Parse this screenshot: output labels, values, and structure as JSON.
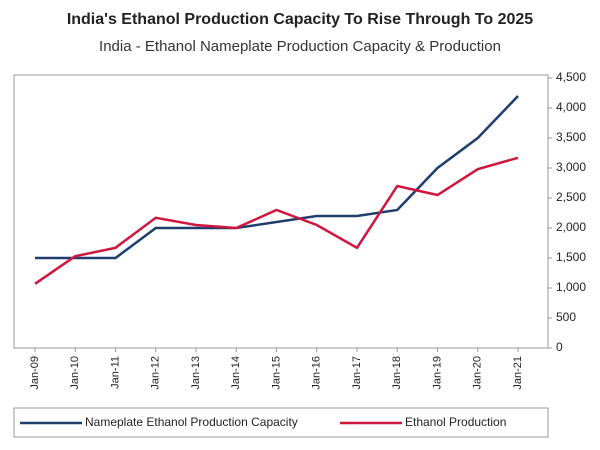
{
  "chart_data": {
    "type": "line",
    "title": "India's Ethanol Production Capacity To Rise Through To 2025",
    "subtitle": "India - Ethanol Nameplate Production Capacity & Production",
    "categories": [
      "Jan-09",
      "Jan-10",
      "Jan-11",
      "Jan-12",
      "Jan-13",
      "Jan-14",
      "Jan-15",
      "Jan-16",
      "Jan-17",
      "Jan-18",
      "Jan-19",
      "Jan-20",
      "Jan-21"
    ],
    "series": [
      {
        "name": "Nameplate Ethanol Production Capacity",
        "color": "#1f3e6e",
        "values": [
          1500,
          1500,
          1500,
          2000,
          2000,
          2000,
          2100,
          2200,
          2200,
          2300,
          3000,
          3500,
          4200
        ]
      },
      {
        "name": "Ethanol Production",
        "color": "#d0163f",
        "values": [
          1070,
          1530,
          1670,
          2170,
          2050,
          2000,
          2300,
          2050,
          1670,
          2700,
          2550,
          2980,
          3170
        ]
      }
    ],
    "ylim": [
      0,
      4500
    ],
    "yticks": [
      0,
      500,
      {
        "value": 1000,
        "label": "1,000"
      },
      {
        "value": 1500,
        "label": "1,500"
      },
      {
        "value": 2000,
        "label": "2,000"
      },
      {
        "value": 2500,
        "label": "2,500"
      },
      {
        "value": 3000,
        "label": "3,000"
      },
      {
        "value": 3500,
        "label": "3,500"
      },
      {
        "value": 4000,
        "label": "4,000"
      },
      {
        "value": 4500,
        "label": "4,500"
      }
    ],
    "y_axis_side": "right",
    "grid": false,
    "legend": "bottom"
  }
}
